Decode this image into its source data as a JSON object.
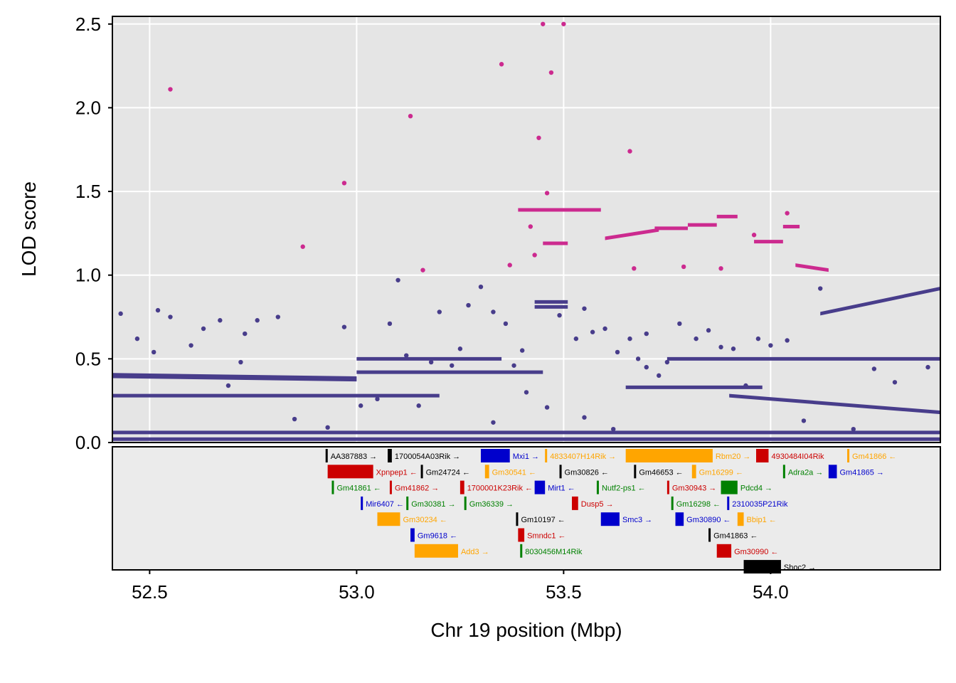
{
  "chart_data": {
    "type": "scatter",
    "xlabel": "Chr 19 position (Mbp)",
    "ylabel": "LOD score",
    "xlim": [
      52.41,
      54.41
    ],
    "ylim": [
      0,
      2.5
    ],
    "x_ticks": [
      52.5,
      53.0,
      53.5,
      54.0
    ],
    "x_tick_labels": [
      "52.5",
      "53.0",
      "53.5",
      "54.0"
    ],
    "y_ticks": [
      0,
      0.5,
      1.0,
      1.5,
      2.0,
      2.5
    ],
    "y_tick_labels": [
      "0.0",
      "0.5",
      "1.0",
      "1.5",
      "2.0",
      "2.5"
    ],
    "grid": true,
    "colors": {
      "panel_bg": "#e5e5e5",
      "grid": "#ffffff",
      "snp_main": "#483d8b",
      "snp_highlight": "#cc2a8f"
    },
    "series": [
      {
        "color": "#483d8b",
        "bands": [
          {
            "x": [
              52.41,
              53.0
            ],
            "y": [
              0.4,
              0.38
            ],
            "thickness": 0.03
          },
          {
            "x": [
              53.0,
              53.45
            ],
            "y": [
              0.42,
              0.42
            ],
            "thickness": 0.02
          },
          {
            "x": [
              53.0,
              53.35
            ],
            "y": [
              0.5,
              0.5
            ],
            "thickness": 0.02
          },
          {
            "x": [
              53.75,
              54.41
            ],
            "y": [
              0.5,
              0.5
            ],
            "thickness": 0.02
          },
          {
            "x": [
              54.12,
              54.41
            ],
            "y": [
              0.77,
              0.92
            ],
            "thickness": 0.02
          },
          {
            "x": [
              53.65,
              53.98
            ],
            "y": [
              0.33,
              0.33
            ],
            "thickness": 0.02
          },
          {
            "x": [
              52.41,
              53.2
            ],
            "y": [
              0.28,
              0.28
            ],
            "thickness": 0.02
          },
          {
            "x": [
              53.9,
              54.41
            ],
            "y": [
              0.28,
              0.18
            ],
            "thickness": 0.02
          },
          {
            "x": [
              52.41,
              54.41
            ],
            "y": [
              0.06,
              0.06
            ],
            "thickness": 0.02
          },
          {
            "x": [
              52.41,
              54.41
            ],
            "y": [
              0.02,
              0.02
            ],
            "thickness": 0.02
          },
          {
            "x": [
              53.43,
              53.51
            ],
            "y": [
              0.84,
              0.84
            ],
            "thickness": 0.02
          },
          {
            "x": [
              53.43,
              53.51
            ],
            "y": [
              0.81,
              0.81
            ],
            "thickness": 0.02
          }
        ],
        "points": [
          [
            52.43,
            0.77
          ],
          [
            52.47,
            0.62
          ],
          [
            52.51,
            0.54
          ],
          [
            52.52,
            0.79
          ],
          [
            52.55,
            0.75
          ],
          [
            52.6,
            0.58
          ],
          [
            52.63,
            0.68
          ],
          [
            52.67,
            0.73
          ],
          [
            52.69,
            0.34
          ],
          [
            52.72,
            0.48
          ],
          [
            52.73,
            0.65
          ],
          [
            52.76,
            0.73
          ],
          [
            52.81,
            0.75
          ],
          [
            52.85,
            0.14
          ],
          [
            52.93,
            0.09
          ],
          [
            52.97,
            0.69
          ],
          [
            53.01,
            0.22
          ],
          [
            53.05,
            0.26
          ],
          [
            53.08,
            0.71
          ],
          [
            53.1,
            0.97
          ],
          [
            53.12,
            0.52
          ],
          [
            53.15,
            0.22
          ],
          [
            53.18,
            0.48
          ],
          [
            53.2,
            0.78
          ],
          [
            53.23,
            0.46
          ],
          [
            53.25,
            0.56
          ],
          [
            53.27,
            0.82
          ],
          [
            53.3,
            0.93
          ],
          [
            53.33,
            0.78
          ],
          [
            53.36,
            0.71
          ],
          [
            53.38,
            0.46
          ],
          [
            53.41,
            0.3
          ],
          [
            53.46,
            0.21
          ],
          [
            53.49,
            0.76
          ],
          [
            53.53,
            0.62
          ],
          [
            53.55,
            0.8
          ],
          [
            53.57,
            0.66
          ],
          [
            53.6,
            0.68
          ],
          [
            53.63,
            0.54
          ],
          [
            53.66,
            0.62
          ],
          [
            53.68,
            0.5
          ],
          [
            53.7,
            0.45
          ],
          [
            53.73,
            0.4
          ],
          [
            53.75,
            0.48
          ],
          [
            53.78,
            0.71
          ],
          [
            53.82,
            0.62
          ],
          [
            53.85,
            0.67
          ],
          [
            53.88,
            0.57
          ],
          [
            53.91,
            0.56
          ],
          [
            53.94,
            0.34
          ],
          [
            53.97,
            0.62
          ],
          [
            54.0,
            0.58
          ],
          [
            54.04,
            0.61
          ],
          [
            54.08,
            0.13
          ],
          [
            54.12,
            0.92
          ],
          [
            54.2,
            0.08
          ],
          [
            54.25,
            0.44
          ],
          [
            54.3,
            0.36
          ],
          [
            54.38,
            0.45
          ],
          [
            53.62,
            0.08
          ],
          [
            53.4,
            0.55
          ],
          [
            53.33,
            0.12
          ],
          [
            53.55,
            0.15
          ],
          [
            53.7,
            0.65
          ]
        ]
      },
      {
        "color": "#cc2a8f",
        "bands": [
          {
            "x": [
              53.39,
              53.59
            ],
            "y": [
              1.39,
              1.39
            ],
            "thickness": 0.015
          },
          {
            "x": [
              53.6,
              53.73
            ],
            "y": [
              1.22,
              1.27
            ],
            "thickness": 0.015
          },
          {
            "x": [
              53.72,
              53.8
            ],
            "y": [
              1.28,
              1.28
            ],
            "thickness": 0.015
          },
          {
            "x": [
              53.8,
              53.87
            ],
            "y": [
              1.3,
              1.3
            ],
            "thickness": 0.015
          },
          {
            "x": [
              53.87,
              53.92
            ],
            "y": [
              1.35,
              1.35
            ],
            "thickness": 0.015
          },
          {
            "x": [
              53.96,
              54.03
            ],
            "y": [
              1.2,
              1.2
            ],
            "thickness": 0.015
          },
          {
            "x": [
              54.03,
              54.07
            ],
            "y": [
              1.29,
              1.29
            ],
            "thickness": 0.015
          },
          {
            "x": [
              54.06,
              54.14
            ],
            "y": [
              1.06,
              1.03
            ],
            "thickness": 0.015
          },
          {
            "x": [
              53.45,
              53.51
            ],
            "y": [
              1.19,
              1.19
            ],
            "thickness": 0.015
          }
        ],
        "points": [
          [
            52.55,
            2.11
          ],
          [
            52.87,
            1.17
          ],
          [
            52.97,
            1.55
          ],
          [
            53.13,
            1.95
          ],
          [
            53.16,
            1.03
          ],
          [
            53.35,
            2.26
          ],
          [
            53.37,
            1.06
          ],
          [
            53.44,
            1.82
          ],
          [
            53.45,
            2.5
          ],
          [
            53.46,
            1.49
          ],
          [
            53.47,
            2.21
          ],
          [
            53.5,
            2.5
          ],
          [
            53.42,
            1.29
          ],
          [
            53.43,
            1.12
          ],
          [
            53.66,
            1.74
          ],
          [
            53.67,
            1.04
          ],
          [
            53.79,
            1.05
          ],
          [
            53.88,
            1.04
          ],
          [
            54.04,
            1.37
          ],
          [
            53.96,
            1.24
          ]
        ]
      }
    ],
    "genes": [
      {
        "name": "AA387883",
        "start": 52.925,
        "end": 52.93,
        "row": 0,
        "strand": "→",
        "color": "#000000"
      },
      {
        "name": "1700054A03Rik",
        "start": 53.075,
        "end": 53.085,
        "row": 0,
        "strand": "→",
        "color": "#000000"
      },
      {
        "name": "Mxi1",
        "start": 53.3,
        "end": 53.37,
        "row": 0,
        "strand": "→",
        "color": "#0000cc"
      },
      {
        "name": "4833407H14Rik",
        "start": 53.455,
        "end": 53.46,
        "row": 0,
        "strand": "→",
        "color": "#ffa500"
      },
      {
        "name": "Rbm20",
        "start": 53.65,
        "end": 53.86,
        "row": 0,
        "strand": "→",
        "color": "#ffa500"
      },
      {
        "name": "4930484I04Rik",
        "start": 53.965,
        "end": 53.995,
        "row": 0,
        "strand": "",
        "color": "#cc0000"
      },
      {
        "name": "Gm41866",
        "start": 54.185,
        "end": 54.19,
        "row": 0,
        "strand": "←",
        "color": "#ffa500"
      },
      {
        "name": "Xpnpep1",
        "start": 52.93,
        "end": 53.04,
        "row": 1,
        "strand": "←",
        "color": "#cc0000"
      },
      {
        "name": "Gm24724",
        "start": 53.155,
        "end": 53.16,
        "row": 1,
        "strand": "←",
        "color": "#000000"
      },
      {
        "name": "Gm30541",
        "start": 53.31,
        "end": 53.32,
        "row": 1,
        "strand": "←",
        "color": "#ffa500"
      },
      {
        "name": "Gm30826",
        "start": 53.49,
        "end": 53.495,
        "row": 1,
        "strand": "←",
        "color": "#000000"
      },
      {
        "name": "Gm46653",
        "start": 53.67,
        "end": 53.675,
        "row": 1,
        "strand": "←",
        "color": "#000000"
      },
      {
        "name": "Gm16299",
        "start": 53.81,
        "end": 53.82,
        "row": 1,
        "strand": "←",
        "color": "#ffa500"
      },
      {
        "name": "Adra2a",
        "start": 54.03,
        "end": 54.035,
        "row": 1,
        "strand": "→",
        "color": "#008000"
      },
      {
        "name": "Gm41865",
        "start": 54.14,
        "end": 54.16,
        "row": 1,
        "strand": "→",
        "color": "#0000cc"
      },
      {
        "name": "Gm41861",
        "start": 52.94,
        "end": 52.945,
        "row": 2,
        "strand": "←",
        "color": "#008000"
      },
      {
        "name": "Gm41862",
        "start": 53.08,
        "end": 53.085,
        "row": 2,
        "strand": "→",
        "color": "#cc0000"
      },
      {
        "name": "1700001K23Rik",
        "start": 53.25,
        "end": 53.26,
        "row": 2,
        "strand": "←",
        "color": "#cc0000"
      },
      {
        "name": "Mirt1",
        "start": 53.43,
        "end": 53.455,
        "row": 2,
        "strand": "←",
        "color": "#0000cc"
      },
      {
        "name": "Nutf2-ps1",
        "start": 53.58,
        "end": 53.585,
        "row": 2,
        "strand": "←",
        "color": "#008000"
      },
      {
        "name": "Gm30943",
        "start": 53.75,
        "end": 53.755,
        "row": 2,
        "strand": "→",
        "color": "#cc0000"
      },
      {
        "name": "Pdcd4",
        "start": 53.88,
        "end": 53.92,
        "row": 2,
        "strand": "→",
        "color": "#008000"
      },
      {
        "name": "Mir6407",
        "start": 53.01,
        "end": 53.015,
        "row": 3,
        "strand": "←",
        "color": "#0000cc"
      },
      {
        "name": "Gm30381",
        "start": 53.12,
        "end": 53.125,
        "row": 3,
        "strand": "→",
        "color": "#008000"
      },
      {
        "name": "Gm36339",
        "start": 53.26,
        "end": 53.265,
        "row": 3,
        "strand": "→",
        "color": "#008000"
      },
      {
        "name": "Dusp5",
        "start": 53.52,
        "end": 53.535,
        "row": 3,
        "strand": "→",
        "color": "#cc0000"
      },
      {
        "name": "Gm16298",
        "start": 53.76,
        "end": 53.765,
        "row": 3,
        "strand": "←",
        "color": "#008000"
      },
      {
        "name": "2310035P21Rik",
        "start": 53.895,
        "end": 53.9,
        "row": 3,
        "strand": "",
        "color": "#0000cc"
      },
      {
        "name": "Gm30234",
        "start": 53.05,
        "end": 53.105,
        "row": 4,
        "strand": "←",
        "color": "#ffa500"
      },
      {
        "name": "Gm10197",
        "start": 53.385,
        "end": 53.39,
        "row": 4,
        "strand": "←",
        "color": "#000000"
      },
      {
        "name": "Smc3",
        "start": 53.59,
        "end": 53.635,
        "row": 4,
        "strand": "→",
        "color": "#0000cc"
      },
      {
        "name": "Gm30890",
        "start": 53.77,
        "end": 53.79,
        "row": 4,
        "strand": "←",
        "color": "#0000cc"
      },
      {
        "name": "Bbip1",
        "start": 53.92,
        "end": 53.935,
        "row": 4,
        "strand": "←",
        "color": "#ffa500"
      },
      {
        "name": "Gm9618",
        "start": 53.13,
        "end": 53.14,
        "row": 5,
        "strand": "←",
        "color": "#0000cc"
      },
      {
        "name": "Smndc1",
        "start": 53.39,
        "end": 53.405,
        "row": 5,
        "strand": "←",
        "color": "#cc0000"
      },
      {
        "name": "Gm41863",
        "start": 53.85,
        "end": 53.855,
        "row": 5,
        "strand": "←",
        "color": "#000000"
      },
      {
        "name": "Add3",
        "start": 53.14,
        "end": 53.245,
        "row": 6,
        "strand": "→",
        "color": "#ffa500"
      },
      {
        "name": "8030456M14Rik",
        "start": 53.395,
        "end": 53.4,
        "row": 6,
        "strand": "",
        "color": "#008000"
      },
      {
        "name": "Gm30990",
        "start": 53.87,
        "end": 53.905,
        "row": 6,
        "strand": "←",
        "color": "#cc0000"
      },
      {
        "name": "Shoc2",
        "start": 53.935,
        "end": 54.025,
        "row": 7,
        "strand": "→",
        "color": "#000000"
      }
    ]
  }
}
